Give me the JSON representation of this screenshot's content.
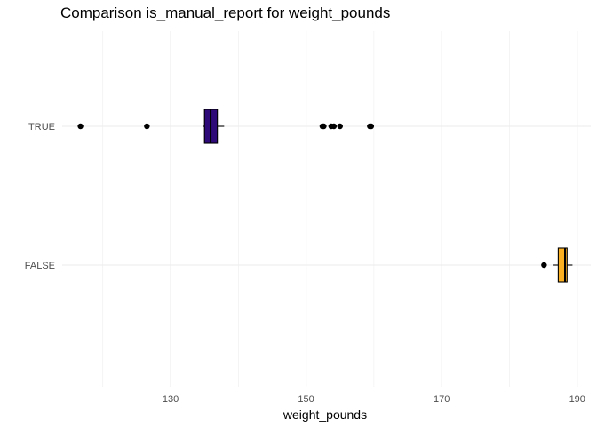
{
  "chart_data": {
    "type": "boxplot",
    "orientation": "horizontal",
    "title": "Comparison is_manual_report for weight_pounds",
    "xlabel": "weight_pounds",
    "ylabel": "",
    "xlim": [
      114,
      192
    ],
    "x_ticks": [
      "130",
      "150",
      "170",
      "190"
    ],
    "x_tick_values": [
      130,
      150,
      170,
      190
    ],
    "x_minor_values": [
      120,
      140,
      160,
      180
    ],
    "grid": true,
    "legend": "none",
    "categories": [
      "TRUE",
      "FALSE"
    ],
    "boxes": [
      {
        "category": "TRUE",
        "fill": "#2d0a78",
        "whisker_low": 134.8,
        "q1": 135.0,
        "median": 135.9,
        "q3": 136.9,
        "whisker_high": 137.9,
        "outliers": [
          116.7,
          126.5,
          152.4,
          152.6,
          153.7,
          154.1,
          155.0,
          159.4,
          159.6
        ]
      },
      {
        "category": "FALSE",
        "fill": "#fbb022",
        "whisker_low": 186.5,
        "q1": 187.2,
        "median": 188.2,
        "q3": 188.5,
        "whisker_high": 189.3,
        "outliers": [
          185.1
        ]
      }
    ]
  }
}
